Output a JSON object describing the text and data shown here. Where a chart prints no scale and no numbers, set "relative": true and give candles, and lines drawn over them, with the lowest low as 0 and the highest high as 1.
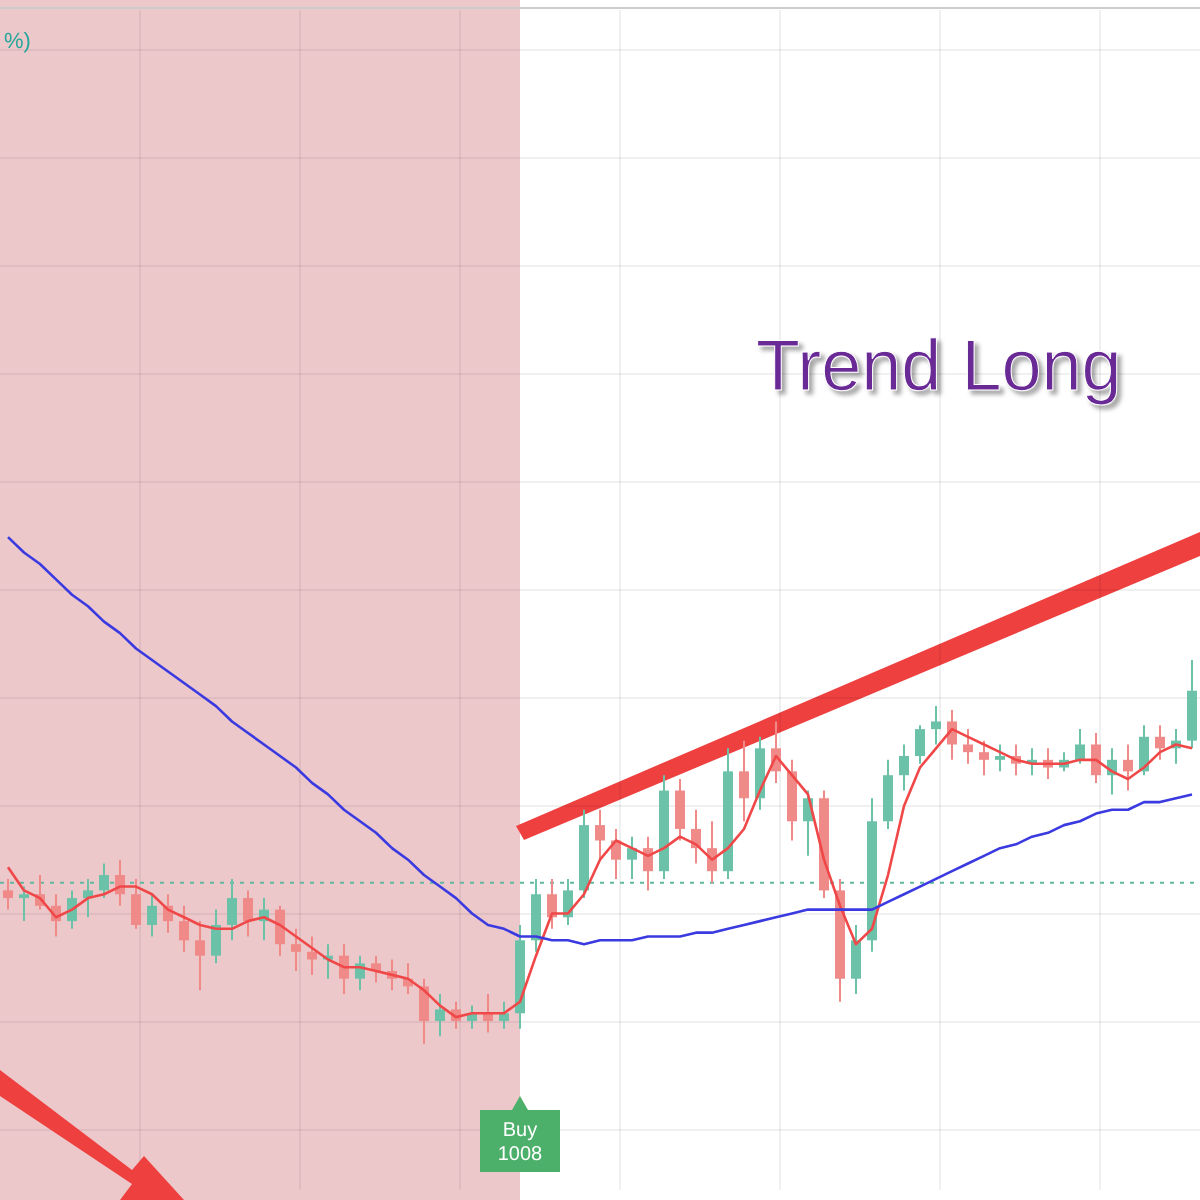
{
  "chart_data": {
    "type": "candlestick",
    "relative": true,
    "grid": true,
    "categories": [
      null,
      null,
      null,
      null,
      null,
      null,
      null,
      null,
      null,
      null,
      null,
      null,
      null,
      null,
      null,
      null,
      null,
      null,
      null,
      null,
      null,
      null,
      null,
      null,
      null,
      null,
      null,
      null,
      null,
      null,
      null,
      null,
      null,
      null,
      null,
      null,
      null,
      null,
      null,
      null,
      null,
      null,
      null,
      null,
      null,
      null,
      null,
      null,
      null,
      null,
      null,
      null,
      null,
      null,
      null,
      null,
      null,
      null,
      null,
      null,
      null,
      null,
      null,
      null,
      null,
      null,
      null,
      null,
      null,
      null,
      null,
      null,
      null,
      null,
      null
    ],
    "ohlc": [
      [
        0.4,
        0.43,
        0.35,
        0.38
      ],
      [
        0.38,
        0.41,
        0.32,
        0.39
      ],
      [
        0.39,
        0.44,
        0.35,
        0.36
      ],
      [
        0.36,
        0.39,
        0.28,
        0.32
      ],
      [
        0.32,
        0.4,
        0.3,
        0.38
      ],
      [
        0.38,
        0.43,
        0.33,
        0.4
      ],
      [
        0.4,
        0.47,
        0.38,
        0.44
      ],
      [
        0.44,
        0.48,
        0.36,
        0.39
      ],
      [
        0.39,
        0.43,
        0.3,
        0.31
      ],
      [
        0.31,
        0.39,
        0.28,
        0.36
      ],
      [
        0.36,
        0.39,
        0.29,
        0.32
      ],
      [
        0.32,
        0.36,
        0.24,
        0.27
      ],
      [
        0.27,
        0.32,
        0.14,
        0.23
      ],
      [
        0.23,
        0.35,
        0.21,
        0.31
      ],
      [
        0.31,
        0.43,
        0.27,
        0.38
      ],
      [
        0.38,
        0.4,
        0.28,
        0.32
      ],
      [
        0.32,
        0.38,
        0.27,
        0.35
      ],
      [
        0.35,
        0.36,
        0.23,
        0.26
      ],
      [
        0.26,
        0.3,
        0.19,
        0.24
      ],
      [
        0.24,
        0.28,
        0.18,
        0.22
      ],
      [
        0.22,
        0.26,
        0.17,
        0.23
      ],
      [
        0.23,
        0.26,
        0.13,
        0.17
      ],
      [
        0.17,
        0.23,
        0.14,
        0.21
      ],
      [
        0.21,
        0.23,
        0.16,
        0.19
      ],
      [
        0.19,
        0.22,
        0.14,
        0.17
      ],
      [
        0.17,
        0.21,
        0.13,
        0.15
      ],
      [
        0.15,
        0.17,
        0,
        0.06
      ],
      [
        0.06,
        0.13,
        0.02,
        0.09
      ],
      [
        0.09,
        0.11,
        0.04,
        0.06
      ],
      [
        0.06,
        0.1,
        0.04,
        0.08
      ],
      [
        0.08,
        0.13,
        0.03,
        0.06
      ],
      [
        0.06,
        0.11,
        0.04,
        0.08
      ],
      [
        0.08,
        0.31,
        0.04,
        0.27
      ],
      [
        0.27,
        0.43,
        0.24,
        0.39
      ],
      [
        0.39,
        0.43,
        0.3,
        0.33
      ],
      [
        0.33,
        0.43,
        0.31,
        0.4
      ],
      [
        0.4,
        0.61,
        0.38,
        0.57
      ],
      [
        0.57,
        0.61,
        0.48,
        0.53
      ],
      [
        0.53,
        0.56,
        0.43,
        0.48
      ],
      [
        0.48,
        0.54,
        0.43,
        0.51
      ],
      [
        0.51,
        0.54,
        0.4,
        0.45
      ],
      [
        0.45,
        0.7,
        0.43,
        0.66
      ],
      [
        0.66,
        0.69,
        0.53,
        0.56
      ],
      [
        0.56,
        0.61,
        0.47,
        0.51
      ],
      [
        0.51,
        0.58,
        0.42,
        0.45
      ],
      [
        0.45,
        0.77,
        0.43,
        0.71
      ],
      [
        0.71,
        0.79,
        0.58,
        0.64
      ],
      [
        0.64,
        0.8,
        0.61,
        0.77
      ],
      [
        0.77,
        0.84,
        0.68,
        0.71
      ],
      [
        0.71,
        0.74,
        0.53,
        0.58
      ],
      [
        0.58,
        0.66,
        0.49,
        0.64
      ],
      [
        0.64,
        0.66,
        0.38,
        0.4
      ],
      [
        0.4,
        0.43,
        0.11,
        0.17
      ],
      [
        0.17,
        0.31,
        0.13,
        0.27
      ],
      [
        0.27,
        0.64,
        0.24,
        0.58
      ],
      [
        0.58,
        0.74,
        0.56,
        0.7
      ],
      [
        0.7,
        0.78,
        0.66,
        0.75
      ],
      [
        0.75,
        0.83,
        0.73,
        0.82
      ],
      [
        0.82,
        0.88,
        0.78,
        0.84
      ],
      [
        0.84,
        0.87,
        0.74,
        0.78
      ],
      [
        0.78,
        0.82,
        0.73,
        0.76
      ],
      [
        0.76,
        0.79,
        0.7,
        0.74
      ],
      [
        0.74,
        0.78,
        0.71,
        0.75
      ],
      [
        0.75,
        0.78,
        0.7,
        0.73
      ],
      [
        0.73,
        0.77,
        0.7,
        0.74
      ],
      [
        0.74,
        0.77,
        0.69,
        0.72
      ],
      [
        0.72,
        0.76,
        0.71,
        0.74
      ],
      [
        0.74,
        0.82,
        0.73,
        0.78
      ],
      [
        0.78,
        0.81,
        0.68,
        0.7
      ],
      [
        0.7,
        0.77,
        0.65,
        0.74
      ],
      [
        0.74,
        0.78,
        0.66,
        0.71
      ],
      [
        0.71,
        0.83,
        0.7,
        0.8
      ],
      [
        0.8,
        0.83,
        0.74,
        0.77
      ],
      [
        0.77,
        0.82,
        0.73,
        0.79
      ],
      [
        0.79,
        1,
        0.77,
        0.92
      ]
    ],
    "series": [
      {
        "type": "line",
        "color": "#f04848",
        "values": [
          0.46,
          0.4,
          0.38,
          0.33,
          0.35,
          0.38,
          0.39,
          0.41,
          0.41,
          0.39,
          0.35,
          0.33,
          0.31,
          0.3,
          0.3,
          0.32,
          0.33,
          0.31,
          0.28,
          0.25,
          0.22,
          0.2,
          0.2,
          0.19,
          0.18,
          0.17,
          0.14,
          0.1,
          0.07,
          0.08,
          0.08,
          0.08,
          0.11,
          0.23,
          0.34,
          0.34,
          0.39,
          0.48,
          0.53,
          0.51,
          0.49,
          0.51,
          0.54,
          0.52,
          0.48,
          0.51,
          0.56,
          0.66,
          0.75,
          0.7,
          0.65,
          0.48,
          0.36,
          0.26,
          0.3,
          0.44,
          0.62,
          0.72,
          0.77,
          0.82,
          0.8,
          0.78,
          0.76,
          0.74,
          0.73,
          0.73,
          0.73,
          0.74,
          0.74,
          0.71,
          0.69,
          0.72,
          0.76,
          0.78,
          0.77
        ]
      },
      {
        "type": "line",
        "color": "#3a3ae0",
        "values": [
          1.32,
          1.28,
          1.25,
          1.21,
          1.17,
          1.14,
          1.1,
          1.07,
          1.03,
          1.0,
          0.97,
          0.94,
          0.91,
          0.88,
          0.84,
          0.81,
          0.78,
          0.75,
          0.72,
          0.68,
          0.65,
          0.61,
          0.58,
          0.55,
          0.51,
          0.48,
          0.44,
          0.41,
          0.38,
          0.34,
          0.31,
          0.3,
          0.28,
          0.28,
          0.27,
          0.27,
          0.26,
          0.27,
          0.27,
          0.27,
          0.28,
          0.28,
          0.28,
          0.29,
          0.29,
          0.3,
          0.31,
          0.32,
          0.33,
          0.34,
          0.35,
          0.35,
          0.35,
          0.35,
          0.35,
          0.37,
          0.39,
          0.41,
          0.43,
          0.45,
          0.47,
          0.49,
          0.51,
          0.52,
          0.54,
          0.55,
          0.57,
          0.58,
          0.6,
          0.61,
          0.61,
          0.63,
          0.63,
          0.64,
          0.65
        ]
      }
    ],
    "ref_lines": [
      {
        "axis": "y",
        "value": 0.42,
        "color": "#5fb8a0",
        "line_style": "dotted"
      }
    ],
    "annotations": [
      "%)",
      "Trend Long",
      "Buy 1008"
    ]
  }
}
